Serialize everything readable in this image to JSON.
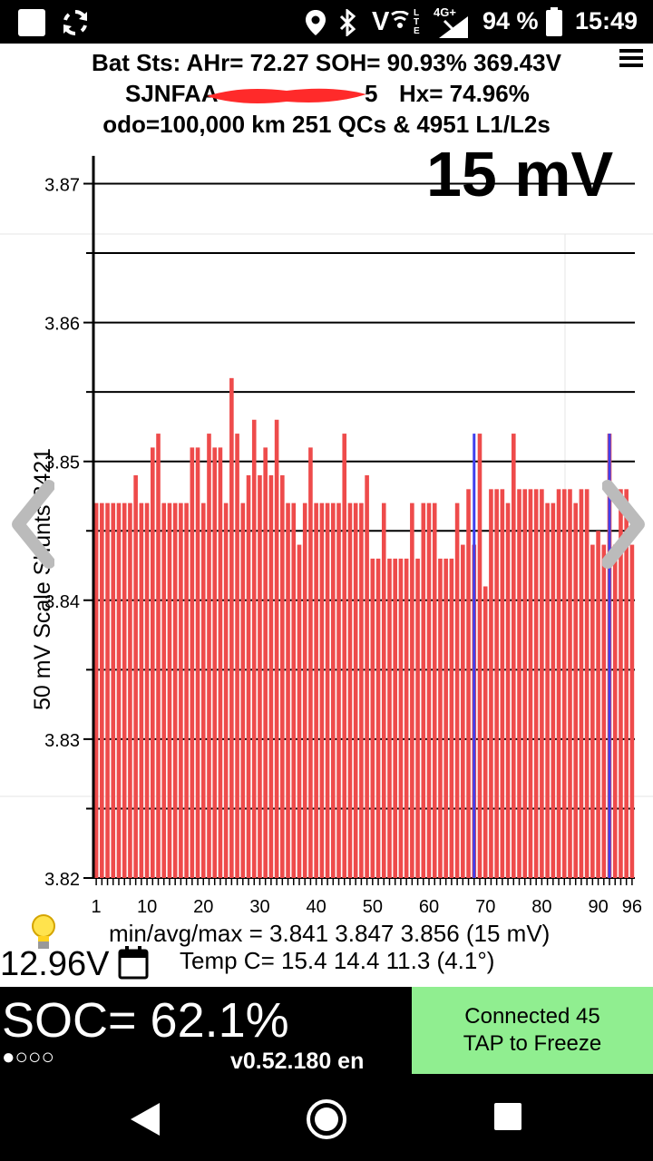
{
  "status_bar": {
    "network": "4G+",
    "battery_percent": "94 %",
    "time": "15:49"
  },
  "header": {
    "line1": "Bat Sts: AHr= 72.27 SOH= 90.93% 369.43V",
    "vin_start": "SJNFAA",
    "vin_end": "5",
    "hx": "Hx= 74.96%",
    "line3": "odo=100,000 km 251 QCs & 4951 L1/L2s"
  },
  "chart_data": {
    "type": "bar",
    "title": "15 mV",
    "ylabel": "50 mV Scale Shunts 8421",
    "ylim": [
      3.82,
      3.872
    ],
    "yticks": [
      3.82,
      3.83,
      3.84,
      3.85,
      3.86,
      3.87
    ],
    "grid": true,
    "xtick_labels": [
      "1",
      "10",
      "20",
      "30",
      "40",
      "50",
      "60",
      "70",
      "80",
      "90",
      "96"
    ],
    "colors": {
      "bar": "#ee4b4b",
      "shunt": "#4040ee",
      "grid": "#000000"
    },
    "x": [
      1,
      2,
      3,
      4,
      5,
      6,
      7,
      8,
      9,
      10,
      11,
      12,
      13,
      14,
      15,
      16,
      17,
      18,
      19,
      20,
      21,
      22,
      23,
      24,
      25,
      26,
      27,
      28,
      29,
      30,
      31,
      32,
      33,
      34,
      35,
      36,
      37,
      38,
      39,
      40,
      41,
      42,
      43,
      44,
      45,
      46,
      47,
      48,
      49,
      50,
      51,
      52,
      53,
      54,
      55,
      56,
      57,
      58,
      59,
      60,
      61,
      62,
      63,
      64,
      65,
      66,
      67,
      68,
      69,
      70,
      71,
      72,
      73,
      74,
      75,
      76,
      77,
      78,
      79,
      80,
      81,
      82,
      83,
      84,
      85,
      86,
      87,
      88,
      89,
      90,
      91,
      92,
      93,
      94,
      95,
      96
    ],
    "values": [
      3.847,
      3.847,
      3.847,
      3.847,
      3.847,
      3.847,
      3.847,
      3.849,
      3.847,
      3.847,
      3.851,
      3.852,
      3.847,
      3.847,
      3.847,
      3.847,
      3.847,
      3.851,
      3.851,
      3.847,
      3.852,
      3.851,
      3.851,
      3.847,
      3.856,
      3.852,
      3.847,
      3.849,
      3.853,
      3.849,
      3.851,
      3.849,
      3.853,
      3.849,
      3.847,
      3.847,
      3.844,
      3.847,
      3.851,
      3.847,
      3.847,
      3.847,
      3.847,
      3.847,
      3.852,
      3.847,
      3.847,
      3.847,
      3.849,
      3.843,
      3.843,
      3.847,
      3.843,
      3.843,
      3.843,
      3.843,
      3.847,
      3.843,
      3.847,
      3.847,
      3.847,
      3.843,
      3.843,
      3.843,
      3.847,
      3.844,
      3.848,
      3.844,
      3.852,
      3.841,
      3.848,
      3.848,
      3.848,
      3.847,
      3.852,
      3.848,
      3.848,
      3.848,
      3.848,
      3.848,
      3.847,
      3.847,
      3.848,
      3.848,
      3.848,
      3.847,
      3.848,
      3.848,
      3.844,
      3.845,
      3.844,
      3.852,
      3.844,
      3.848,
      3.848,
      3.844
    ],
    "shunts": [
      68,
      92
    ]
  },
  "stats": {
    "minavgmax": "min/avg/max = 3.841  3.847  3.856  (15 mV)",
    "temp": "Temp C= 15.4  14.4  11.3  (4.1°)",
    "voltage_12v": "12.96V"
  },
  "bottom": {
    "soc": "SOC= 62.1%",
    "dots": "●○○○",
    "version": "v0.52.180 en",
    "connect_line1": "Connected 45",
    "connect_line2": "TAP to Freeze"
  }
}
